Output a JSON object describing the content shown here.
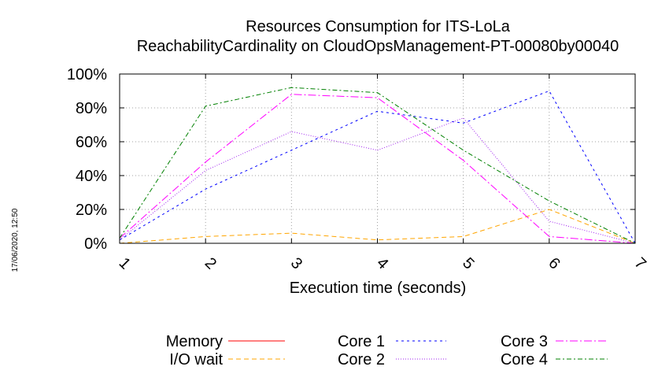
{
  "chart_data": {
    "type": "line",
    "title": "Resources Consumption for ITS-LoLa",
    "subtitle": "ReachabilityCardinality on CloudOpsManagement-PT-00080by00040",
    "xlabel": "Execution time (seconds)",
    "ylabel": "",
    "x": [
      1,
      2,
      3,
      4,
      5,
      6,
      7
    ],
    "xlim": [
      1,
      7
    ],
    "ylim": [
      0,
      100
    ],
    "x_ticks": [
      "1",
      "2",
      "3",
      "4",
      "5",
      "6",
      "7"
    ],
    "y_ticks": [
      "0%",
      "20%",
      "40%",
      "60%",
      "80%",
      "100%"
    ],
    "grid": true,
    "legend_position": "bottom",
    "series": [
      {
        "name": "Memory",
        "color": "#ff0000",
        "dash": "",
        "values": [
          null,
          null,
          null,
          null,
          null,
          null,
          null
        ]
      },
      {
        "name": "I/O wait",
        "color": "#ffa500",
        "dash": "6,4",
        "values": [
          0,
          4,
          6,
          2,
          4,
          20,
          0
        ]
      },
      {
        "name": "Core 1",
        "color": "#0000ff",
        "dash": "3,4",
        "values": [
          2,
          32,
          55,
          78,
          71,
          90,
          0
        ]
      },
      {
        "name": "Core 2",
        "color": "#a020f0",
        "dash": "1,2",
        "values": [
          2,
          43,
          66,
          55,
          74,
          13,
          0
        ]
      },
      {
        "name": "Core 3",
        "color": "#ff00ff",
        "dash": "10,3,2,3",
        "values": [
          3,
          48,
          88,
          86,
          49,
          4,
          0
        ]
      },
      {
        "name": "Core 4",
        "color": "#008000",
        "dash": "6,3,2,3",
        "values": [
          3,
          81,
          92,
          89,
          55,
          25,
          0
        ]
      }
    ]
  },
  "timestamp": "17/06/2020, 12:50"
}
